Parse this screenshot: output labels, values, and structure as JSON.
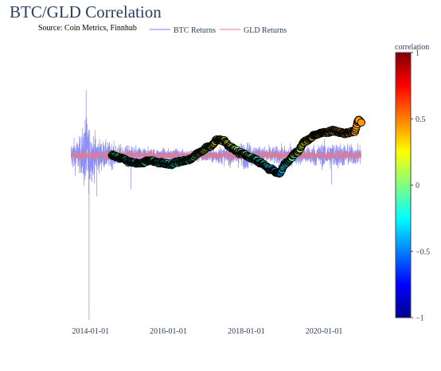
{
  "chart_data": {
    "type": "line+scatter",
    "title": "BTC/GLD Correlation",
    "subtitle": "Source: Coin Metrics, Finnhub",
    "legend": {
      "placement": "top-center",
      "entries": [
        {
          "name": "BTC Returns",
          "color": "#7b7bf0"
        },
        {
          "name": "GLD Returns",
          "color": "#e07b8e"
        }
      ]
    },
    "x_axis": {
      "type": "date",
      "range": [
        "2012-12-25",
        "2021-03-01"
      ],
      "ticks": [
        "2014-01-01",
        "2016-01-01",
        "2018-01-01",
        "2020-01-01"
      ]
    },
    "y_axis": {
      "range": [
        -0.7,
        0.47
      ],
      "grid": false,
      "zero_line": true
    },
    "colorbar": {
      "title": "correlation",
      "range": [
        -1,
        1
      ],
      "ticks": [
        {
          "value": 1,
          "label": "1"
        },
        {
          "value": 0.5,
          "label": "0.5"
        },
        {
          "value": 0,
          "label": "0"
        },
        {
          "value": -0.5,
          "label": "−0.5"
        },
        {
          "value": -1,
          "label": "−1"
        }
      ],
      "colorscale": [
        "#00008f",
        "#0000ff",
        "#0080ff",
        "#00ffff",
        "#80ff80",
        "#ffff00",
        "#ff8000",
        "#ff0000",
        "#800000"
      ]
    },
    "series": [
      {
        "name": "BTC Returns",
        "type": "line",
        "color": "#7b7bf0",
        "x_range": [
          "2013-07-01",
          "2020-12-15"
        ],
        "envelope": [
          [
            "2013-07-01",
            0.1
          ],
          [
            "2013-10-01",
            0.12
          ],
          [
            "2013-11-15",
            0.27
          ],
          [
            "2014-01-01",
            0.18
          ],
          [
            "2014-04-01",
            0.1
          ],
          [
            "2014-10-01",
            0.07
          ],
          [
            "2015-06-01",
            0.05
          ],
          [
            "2016-06-01",
            0.04
          ],
          [
            "2017-06-01",
            0.06
          ],
          [
            "2017-12-15",
            0.09
          ],
          [
            "2018-06-01",
            0.06
          ],
          [
            "2019-06-01",
            0.06
          ],
          [
            "2020-03-15",
            0.09
          ],
          [
            "2020-12-15",
            0.06
          ]
        ],
        "spikes": [
          {
            "x": "2013-11-20",
            "y": 0.27
          },
          {
            "x": "2013-12-18",
            "y": -0.68
          },
          {
            "x": "2014-03-01",
            "y": -0.17
          },
          {
            "x": "2015-01-14",
            "y": -0.14
          },
          {
            "x": "2020-03-12",
            "y": -0.12
          }
        ]
      },
      {
        "name": "GLD Returns",
        "type": "line",
        "color": "#e07b8e",
        "x_range": [
          "2013-07-01",
          "2020-12-15"
        ],
        "amplitude": 0.012
      },
      {
        "name": "correlation",
        "type": "scatter",
        "x_range": [
          "2014-07-20",
          "2020-12-15"
        ],
        "points": [
          [
            "2014-07-20",
            0.0,
            -0.05
          ],
          [
            "2014-10-15",
            -0.012,
            -0.11
          ],
          [
            "2015-01-15",
            -0.028,
            -0.22
          ],
          [
            "2015-04-15",
            -0.033,
            -0.25
          ],
          [
            "2015-07-15",
            -0.022,
            -0.18
          ],
          [
            "2015-10-15",
            -0.03,
            -0.22
          ],
          [
            "2016-01-15",
            -0.038,
            -0.26
          ],
          [
            "2016-04-15",
            -0.026,
            -0.2
          ],
          [
            "2016-07-15",
            -0.018,
            -0.12
          ],
          [
            "2016-10-15",
            0.01,
            0.02
          ],
          [
            "2017-01-15",
            0.035,
            0.15
          ],
          [
            "2017-04-15",
            0.065,
            0.28
          ],
          [
            "2017-06-01",
            0.06,
            0.27
          ],
          [
            "2017-08-15",
            0.03,
            0.12
          ],
          [
            "2017-11-15",
            0.008,
            0.03
          ],
          [
            "2018-02-15",
            -0.01,
            -0.08
          ],
          [
            "2018-05-15",
            -0.03,
            -0.22
          ],
          [
            "2018-08-15",
            -0.058,
            -0.38
          ],
          [
            "2018-11-01",
            -0.075,
            -0.47
          ],
          [
            "2019-01-15",
            -0.03,
            -0.22
          ],
          [
            "2019-04-15",
            0.01,
            0.02
          ],
          [
            "2019-07-15",
            0.06,
            0.27
          ],
          [
            "2019-10-15",
            0.085,
            0.34
          ],
          [
            "2020-01-15",
            0.095,
            0.4
          ],
          [
            "2020-04-15",
            0.1,
            0.42
          ],
          [
            "2020-07-15",
            0.09,
            0.4
          ],
          [
            "2020-10-15",
            0.1,
            0.43
          ],
          [
            "2020-11-20",
            0.145,
            0.46
          ],
          [
            "2020-12-15",
            0.135,
            0.45
          ]
        ],
        "columns": [
          "date",
          "y",
          "correlation"
        ]
      }
    ]
  }
}
